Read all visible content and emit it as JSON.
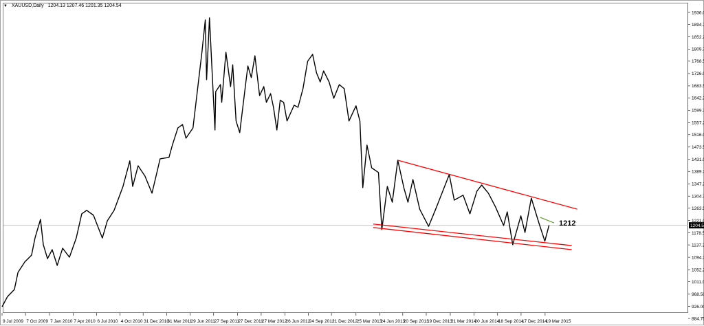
{
  "window": {
    "symbol_label": "XAUUSD,Daily",
    "ohlc": "1204.13 1207.46 1201.35 1204.54",
    "menu_icon": "triangle-down-icon"
  },
  "colors": {
    "price": "#000000",
    "trendline": "#ff0000",
    "resistance_short": "#6b9e3a",
    "current_price_line": "#c8c8c8",
    "current_price_box": "#000000"
  },
  "chart_data": {
    "type": "line",
    "symbol": "XAUUSD",
    "timeframe": "Daily",
    "current_price": 1204.54,
    "ylim": [
      884.75,
      1936.0
    ],
    "y_ticks": [
      "1936.00",
      "1894.75",
      "1852.25",
      "1809.75",
      "1768.50",
      "1726.00",
      "1683.50",
      "1642.25",
      "1599.75",
      "1557.25",
      "1516.00",
      "1473.50",
      "1431.00",
      "1389.75",
      "1347.25",
      "1304.75",
      "1263.50",
      "1221.00",
      "1178.50",
      "1137.25",
      "1094.75",
      "1052.25",
      "1011.00",
      "968.50",
      "926.00",
      "884.75"
    ],
    "x_ticks": [
      {
        "date": "2009-07-09",
        "label": "9 Jul 2009"
      },
      {
        "date": "2009-10-07",
        "label": "7 Oct 2009"
      },
      {
        "date": "2010-01-07",
        "label": "7 Jan 2010"
      },
      {
        "date": "2010-04-07",
        "label": "7 Apr 2010"
      },
      {
        "date": "2010-07-06",
        "label": "6 Jul 2010"
      },
      {
        "date": "2010-10-04",
        "label": "4 Oct 2010"
      },
      {
        "date": "2010-12-31",
        "label": "31 Dec 2010"
      },
      {
        "date": "2011-03-31",
        "label": "31 Mar 2011"
      },
      {
        "date": "2011-06-29",
        "label": "29 Jun 2011"
      },
      {
        "date": "2011-09-27",
        "label": "27 Sep 2011"
      },
      {
        "date": "2011-12-27",
        "label": "27 Dec 2011"
      },
      {
        "date": "2012-03-27",
        "label": "27 Mar 2012"
      },
      {
        "date": "2012-06-26",
        "label": "26 Jun 2012"
      },
      {
        "date": "2012-09-24",
        "label": "24 Sep 2012"
      },
      {
        "date": "2012-12-21",
        "label": "21 Dec 2012"
      },
      {
        "date": "2013-03-25",
        "label": "25 Mar 2013"
      },
      {
        "date": "2013-06-24",
        "label": "24 Jun 2013"
      },
      {
        "date": "2013-09-20",
        "label": "20 Sep 2013"
      },
      {
        "date": "2013-12-19",
        "label": "19 Dec 2013"
      },
      {
        "date": "2014-03-21",
        "label": "21 Mar 2014"
      },
      {
        "date": "2014-06-20",
        "label": "20 Jun 2014"
      },
      {
        "date": "2014-09-18",
        "label": "18 Sep 2014"
      },
      {
        "date": "2014-12-17",
        "label": "17 Dec 2014"
      },
      {
        "date": "2015-03-19",
        "label": "19 Mar 2015"
      }
    ],
    "series": [
      {
        "points": [
          [
            "2009-07-09",
            925
          ],
          [
            "2009-07-30",
            960
          ],
          [
            "2009-08-25",
            984
          ],
          [
            "2009-09-08",
            1043
          ],
          [
            "2009-10-04",
            1079
          ],
          [
            "2009-10-30",
            1102
          ],
          [
            "2009-11-12",
            1161
          ],
          [
            "2009-12-03",
            1225
          ],
          [
            "2009-12-14",
            1138
          ],
          [
            "2009-12-30",
            1090
          ],
          [
            "2010-01-17",
            1121
          ],
          [
            "2010-02-05",
            1067
          ],
          [
            "2010-02-26",
            1126
          ],
          [
            "2010-03-24",
            1095
          ],
          [
            "2010-04-19",
            1161
          ],
          [
            "2010-05-10",
            1244
          ],
          [
            "2010-05-29",
            1256
          ],
          [
            "2010-06-24",
            1239
          ],
          [
            "2010-07-07",
            1209
          ],
          [
            "2010-07-28",
            1161
          ],
          [
            "2010-08-16",
            1220
          ],
          [
            "2010-09-11",
            1256
          ],
          [
            "2010-10-15",
            1338
          ],
          [
            "2010-11-10",
            1426
          ],
          [
            "2010-11-21",
            1338
          ],
          [
            "2010-12-12",
            1409
          ],
          [
            "2011-01-07",
            1374
          ],
          [
            "2011-02-03",
            1315
          ],
          [
            "2011-03-06",
            1433
          ],
          [
            "2011-04-09",
            1438
          ],
          [
            "2011-04-22",
            1480
          ],
          [
            "2011-05-13",
            1539
          ],
          [
            "2011-05-31",
            1551
          ],
          [
            "2011-06-13",
            1504
          ],
          [
            "2011-07-10",
            1539
          ],
          [
            "2011-08-13",
            1799
          ],
          [
            "2011-08-26",
            1910
          ],
          [
            "2011-08-31",
            1705
          ],
          [
            "2011-09-11",
            1917
          ],
          [
            "2011-10-02",
            1532
          ],
          [
            "2011-10-05",
            1664
          ],
          [
            "2011-10-23",
            1688
          ],
          [
            "2011-10-28",
            1627
          ],
          [
            "2011-11-13",
            1799
          ],
          [
            "2011-12-01",
            1681
          ],
          [
            "2011-12-09",
            1756
          ],
          [
            "2011-12-22",
            1563
          ],
          [
            "2012-01-05",
            1523
          ],
          [
            "2012-01-23",
            1657
          ],
          [
            "2012-02-05",
            1752
          ],
          [
            "2012-02-18",
            1712
          ],
          [
            "2012-03-03",
            1787
          ],
          [
            "2012-03-21",
            1650
          ],
          [
            "2012-04-06",
            1681
          ],
          [
            "2012-04-16",
            1627
          ],
          [
            "2012-05-02",
            1657
          ],
          [
            "2012-05-13",
            1610
          ],
          [
            "2012-05-26",
            1532
          ],
          [
            "2012-06-08",
            1634
          ],
          [
            "2012-06-21",
            1627
          ],
          [
            "2012-07-04",
            1563
          ],
          [
            "2012-07-31",
            1617
          ],
          [
            "2012-08-15",
            1610
          ],
          [
            "2012-09-03",
            1674
          ],
          [
            "2012-09-21",
            1768
          ],
          [
            "2012-10-10",
            1792
          ],
          [
            "2012-10-25",
            1728
          ],
          [
            "2012-11-08",
            1697
          ],
          [
            "2012-11-21",
            1735
          ],
          [
            "2012-12-12",
            1697
          ],
          [
            "2012-12-30",
            1641
          ],
          [
            "2013-01-20",
            1688
          ],
          [
            "2013-02-08",
            1674
          ],
          [
            "2013-02-26",
            1563
          ],
          [
            "2013-03-25",
            1615
          ],
          [
            "2013-04-09",
            1563
          ],
          [
            "2013-04-20",
            1334
          ],
          [
            "2013-05-06",
            1480
          ],
          [
            "2013-05-24",
            1402
          ],
          [
            "2013-06-19",
            1386
          ],
          [
            "2013-07-02",
            1190
          ],
          [
            "2013-07-23",
            1338
          ],
          [
            "2013-08-11",
            1284
          ],
          [
            "2013-09-01",
            1428
          ],
          [
            "2013-09-25",
            1331
          ],
          [
            "2013-10-10",
            1284
          ],
          [
            "2013-10-29",
            1362
          ],
          [
            "2013-11-24",
            1260
          ],
          [
            "2013-12-28",
            1201
          ],
          [
            "2014-01-24",
            1260
          ],
          [
            "2014-03-02",
            1345
          ],
          [
            "2014-03-17",
            1379
          ],
          [
            "2014-04-05",
            1291
          ],
          [
            "2014-05-09",
            1308
          ],
          [
            "2014-06-04",
            1244
          ],
          [
            "2014-07-01",
            1322
          ],
          [
            "2014-07-19",
            1343
          ],
          [
            "2014-08-14",
            1315
          ],
          [
            "2014-09-10",
            1268
          ],
          [
            "2014-10-11",
            1204
          ],
          [
            "2014-10-25",
            1251
          ],
          [
            "2014-11-15",
            1138
          ],
          [
            "2014-12-16",
            1237
          ],
          [
            "2015-01-01",
            1180
          ],
          [
            "2015-01-25",
            1298
          ],
          [
            "2015-02-23",
            1213
          ],
          [
            "2015-03-18",
            1150
          ],
          [
            "2015-04-03",
            1204.54
          ]
        ]
      }
    ],
    "trendlines": [
      {
        "color": "#ff0000",
        "from": [
          "2013-09-01",
          1428
        ],
        "to": [
          "2015-07-20",
          1260
        ]
      },
      {
        "color": "#ff0000",
        "from": [
          "2013-05-30",
          1209
        ],
        "to": [
          "2015-06-29",
          1135
        ]
      },
      {
        "color": "#ff0000",
        "from": [
          "2013-05-30",
          1197
        ],
        "to": [
          "2015-06-29",
          1121
        ]
      },
      {
        "color": "#6b9e3a",
        "from": [
          "2015-02-28",
          1232
        ],
        "to": [
          "2015-04-22",
          1213
        ]
      }
    ],
    "annotations": [
      {
        "text": "1212"
      }
    ],
    "grid": false
  }
}
